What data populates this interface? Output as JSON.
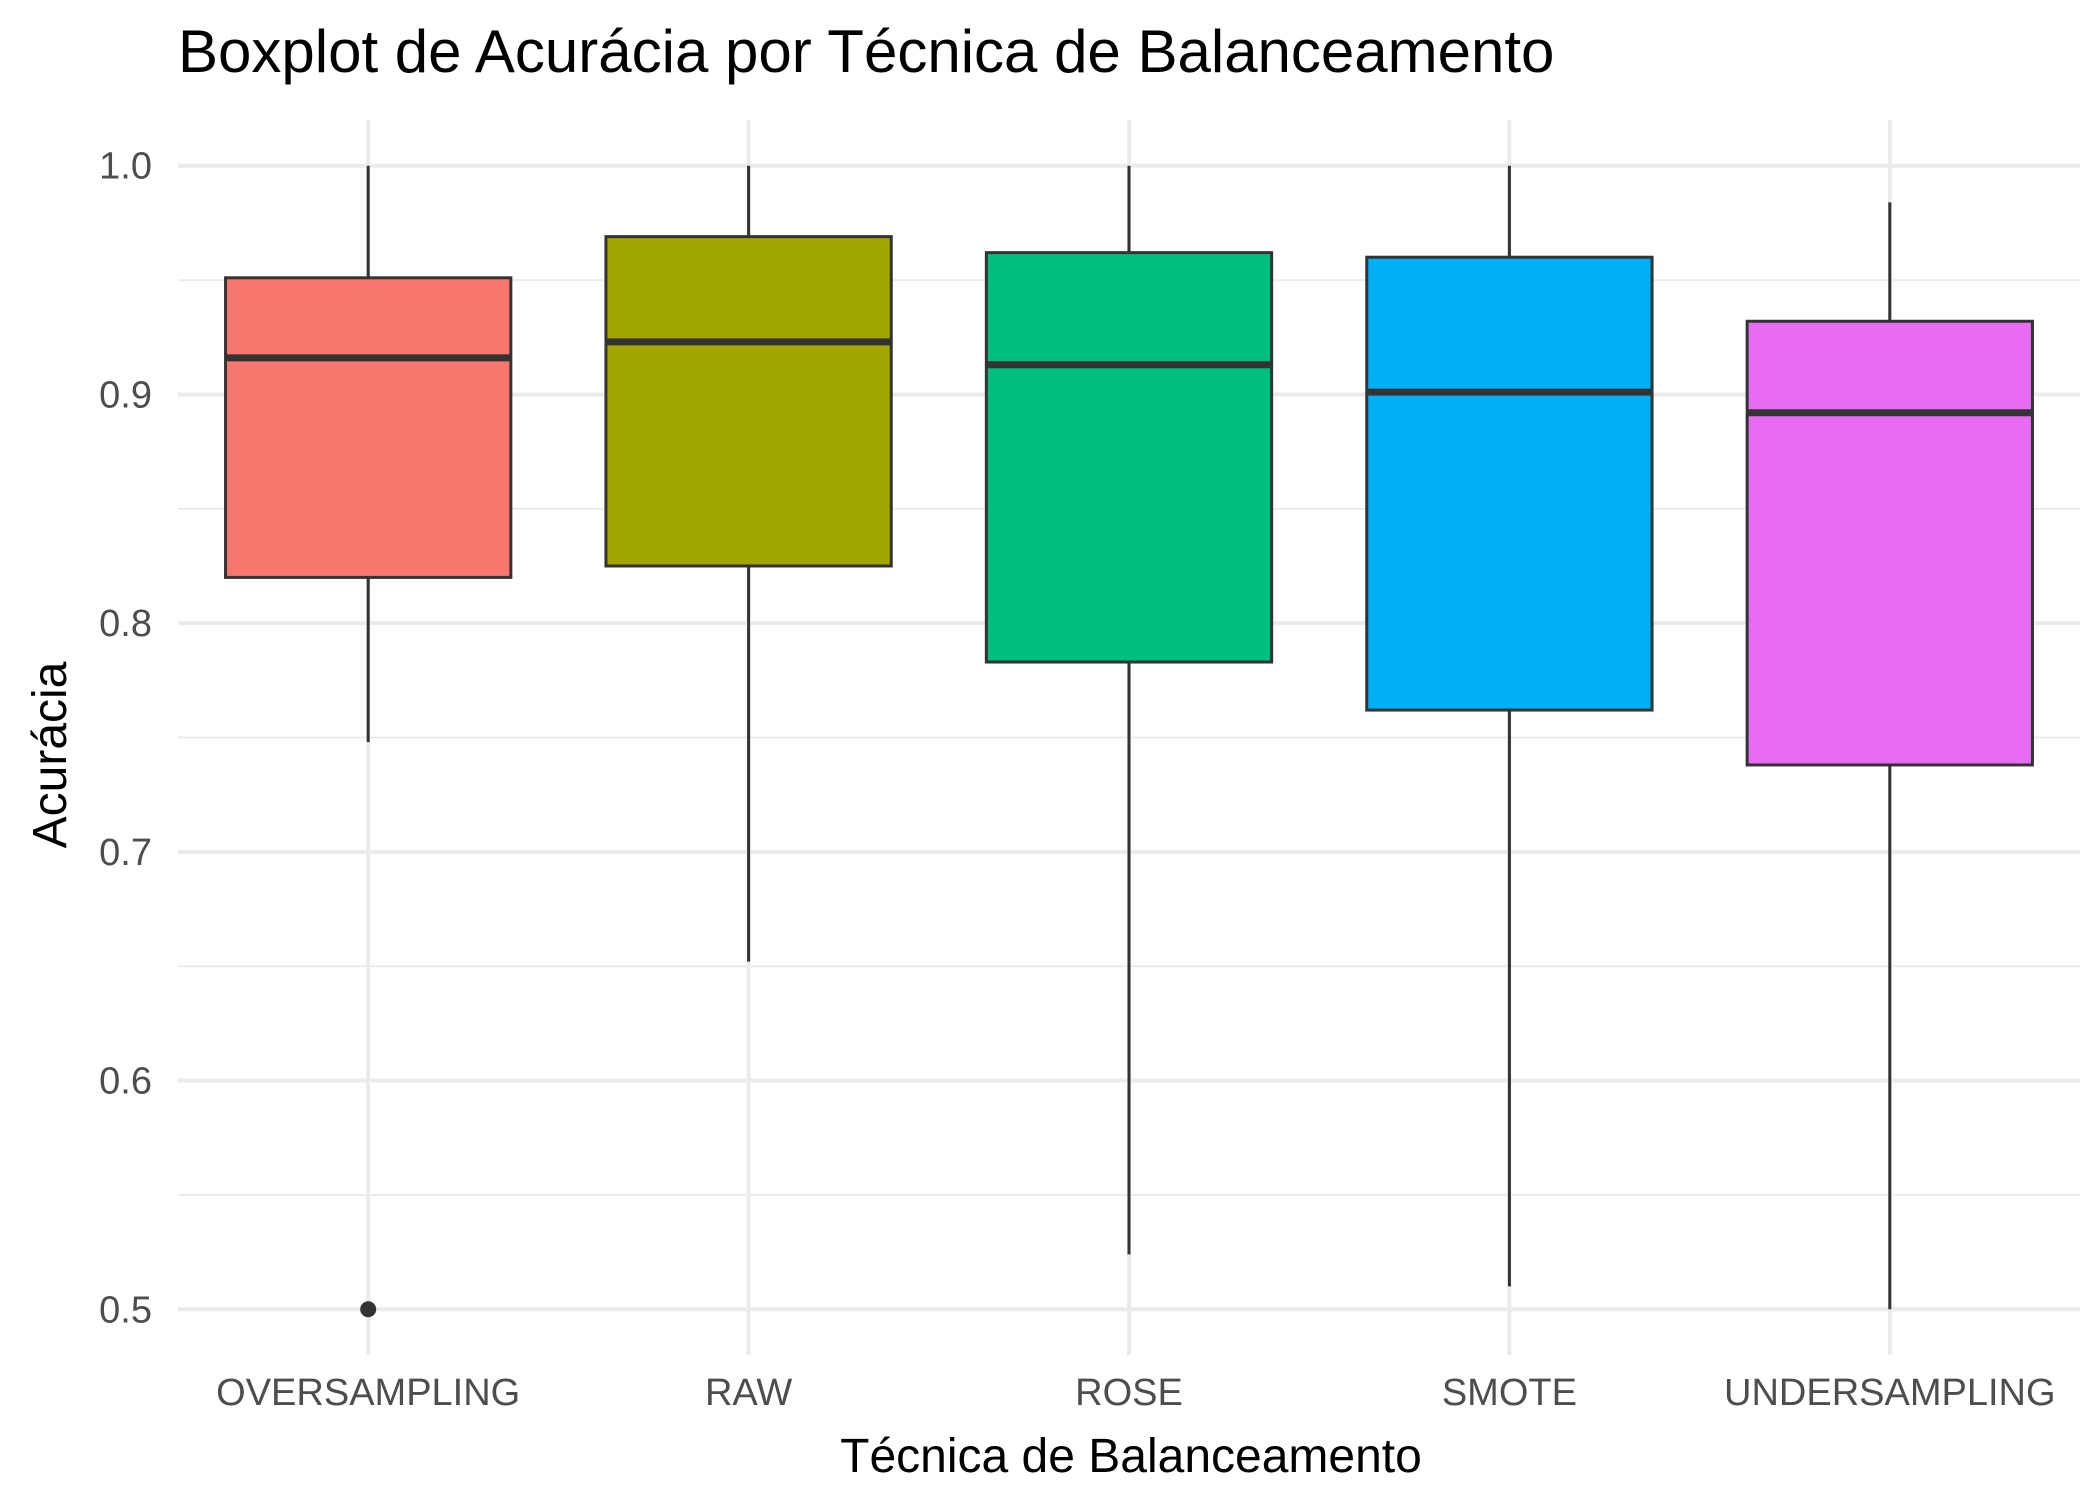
{
  "chart_data": {
    "type": "boxplot",
    "title": "Boxplot de Acurácia por Técnica de Balanceamento",
    "xlabel": "Técnica de Balanceamento",
    "ylabel": "Acurácia",
    "ylim": [
      0.48,
      1.02
    ],
    "y_ticks": [
      "0.5",
      "0.6",
      "0.7",
      "0.8",
      "0.9",
      "1.0"
    ],
    "grid": true,
    "legend": "none",
    "categories": [
      "OVERSAMPLING",
      "RAW",
      "ROSE",
      "SMOTE",
      "UNDERSAMPLING"
    ],
    "boxes": [
      {
        "category": "OVERSAMPLING",
        "whisker_low": 0.748,
        "q1": 0.82,
        "median": 0.916,
        "q3": 0.951,
        "whisker_high": 1.0,
        "outliers": [
          0.5
        ],
        "color": "#F8766D"
      },
      {
        "category": "RAW",
        "whisker_low": 0.652,
        "q1": 0.825,
        "median": 0.923,
        "q3": 0.969,
        "whisker_high": 1.0,
        "outliers": [],
        "color": "#A3A500"
      },
      {
        "category": "ROSE",
        "whisker_low": 0.524,
        "q1": 0.783,
        "median": 0.913,
        "q3": 0.962,
        "whisker_high": 1.0,
        "outliers": [],
        "color": "#00BF7D"
      },
      {
        "category": "SMOTE",
        "whisker_low": 0.51,
        "q1": 0.762,
        "median": 0.901,
        "q3": 0.96,
        "whisker_high": 1.0,
        "outliers": [],
        "color": "#00B0F6"
      },
      {
        "category": "UNDERSAMPLING",
        "whisker_low": 0.5,
        "q1": 0.738,
        "median": 0.892,
        "q3": 0.932,
        "whisker_high": 0.984,
        "outliers": [],
        "color": "#E76BF3"
      }
    ]
  }
}
